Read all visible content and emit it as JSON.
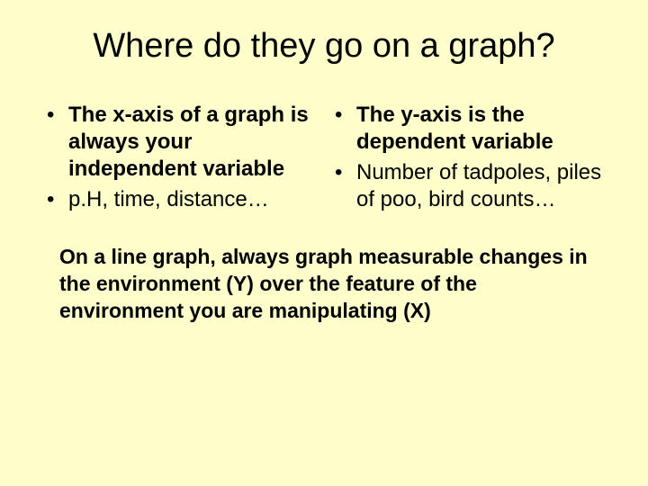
{
  "background_color": "#ffffcc",
  "text_color": "#000000",
  "title": "Where do they go on a graph?",
  "title_fontsize": 38,
  "body_fontsize": 24,
  "left_column": {
    "items": [
      {
        "text": "The x-axis of a graph is always your independent variable",
        "bold": true
      },
      {
        "text": "p.H, time, distance…",
        "bold": false
      }
    ]
  },
  "right_column": {
    "items": [
      {
        "text": "The y-axis is the dependent variable",
        "bold": true
      },
      {
        "text": "Number of tadpoles, piles of poo, bird counts…",
        "bold": false
      }
    ]
  },
  "footer": "On a line graph, always graph measurable changes in the environment (Y) over the feature of the environment you are manipulating (X)",
  "bullet_char": "•"
}
